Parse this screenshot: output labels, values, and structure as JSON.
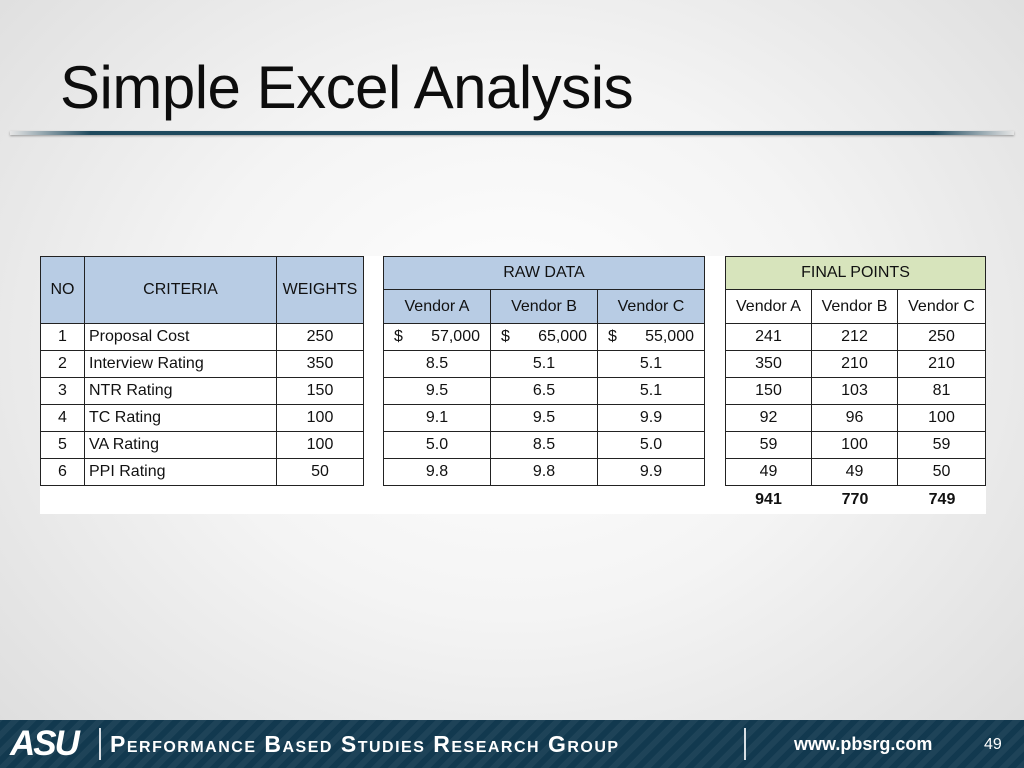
{
  "slide": {
    "title": "Simple Excel Analysis",
    "page_number": "49"
  },
  "table": {
    "headers": {
      "no": "NO",
      "criteria": "CRITERIA",
      "weights": "WEIGHTS",
      "raw_data": "RAW DATA",
      "final_points": "FINAL POINTS",
      "raw_vendors": [
        "Vendor A",
        "Vendor B",
        "Vendor C"
      ],
      "final_vendors": [
        "Vendor A",
        "Vendor B",
        "Vendor C"
      ]
    },
    "rows": [
      {
        "no": "1",
        "criteria": "Proposal Cost",
        "weight": "250",
        "raw": [
          {
            "cur": "$",
            "val": "57,000"
          },
          {
            "cur": "$",
            "val": "65,000"
          },
          {
            "cur": "$",
            "val": "55,000"
          }
        ],
        "final": [
          "241",
          "212",
          "250"
        ]
      },
      {
        "no": "2",
        "criteria": "Interview Rating",
        "weight": "350",
        "raw": [
          {
            "cur": "",
            "val": "8.5"
          },
          {
            "cur": "",
            "val": "5.1"
          },
          {
            "cur": "",
            "val": "5.1"
          }
        ],
        "final": [
          "350",
          "210",
          "210"
        ]
      },
      {
        "no": "3",
        "criteria": "NTR Rating",
        "weight": "150",
        "raw": [
          {
            "cur": "",
            "val": "9.5"
          },
          {
            "cur": "",
            "val": "6.5"
          },
          {
            "cur": "",
            "val": "5.1"
          }
        ],
        "final": [
          "150",
          "103",
          "81"
        ]
      },
      {
        "no": "4",
        "criteria": "TC Rating",
        "weight": "100",
        "raw": [
          {
            "cur": "",
            "val": "9.1"
          },
          {
            "cur": "",
            "val": "9.5"
          },
          {
            "cur": "",
            "val": "9.9"
          }
        ],
        "final": [
          "92",
          "96",
          "100"
        ]
      },
      {
        "no": "5",
        "criteria": "VA Rating",
        "weight": "100",
        "raw": [
          {
            "cur": "",
            "val": "5.0"
          },
          {
            "cur": "",
            "val": "8.5"
          },
          {
            "cur": "",
            "val": "5.0"
          }
        ],
        "final": [
          "59",
          "100",
          "59"
        ]
      },
      {
        "no": "6",
        "criteria": "PPI Rating",
        "weight": "50",
        "raw": [
          {
            "cur": "",
            "val": "9.8"
          },
          {
            "cur": "",
            "val": "9.8"
          },
          {
            "cur": "",
            "val": "9.9"
          }
        ],
        "final": [
          "49",
          "49",
          "50"
        ]
      }
    ],
    "totals": [
      "941",
      "770",
      "749"
    ]
  },
  "footer": {
    "logo_text": "ASU",
    "org_name": "Performance Based Studies Research Group",
    "website": "www.pbsrg.com",
    "background_color": "#12394f"
  }
}
